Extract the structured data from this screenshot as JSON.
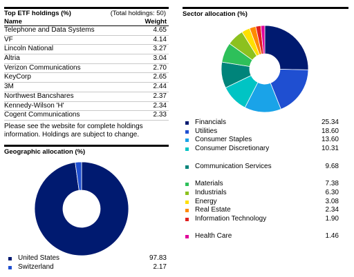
{
  "holdings": {
    "title": "Top ETF holdings (%)",
    "total_note": "(Total holdings: 50)",
    "col_name": "Name",
    "col_weight": "Weight",
    "rows": [
      {
        "name": "Telephone and Data Systems",
        "weight": "4.65"
      },
      {
        "name": "VF",
        "weight": "4.14"
      },
      {
        "name": "Lincoln National",
        "weight": "3.27"
      },
      {
        "name": "Altria",
        "weight": "3.04"
      },
      {
        "name": "Verizon Communications",
        "weight": "2.70"
      },
      {
        "name": "KeyCorp",
        "weight": "2.65"
      },
      {
        "name": "3M",
        "weight": "2.44"
      },
      {
        "name": "Northwest Bancshares",
        "weight": "2.37"
      },
      {
        "name": "Kennedy-Wilson 'H'",
        "weight": "2.34"
      },
      {
        "name": "Cogent Communications",
        "weight": "2.33"
      }
    ],
    "note": "Please see the website for complete holdings information. Holdings are subject to change."
  },
  "chart_data": [
    {
      "type": "pie",
      "title": "Sector allocation (%)",
      "categories": [
        "Financials",
        "Utilities",
        "Consumer Staples",
        "Consumer Discretionary",
        "Communication Services",
        "Materials",
        "Industrials",
        "Energy",
        "Real Estate",
        "Information Technology",
        "Health Care"
      ],
      "values": [
        25.34,
        18.6,
        13.6,
        10.31,
        9.68,
        7.38,
        6.3,
        3.08,
        2.34,
        1.9,
        1.46
      ],
      "value_labels": [
        "25.34",
        "18.60",
        "13.60",
        "10.31",
        "9.68",
        "7.38",
        "6.30",
        "3.08",
        "2.34",
        "1.90",
        "1.46"
      ],
      "colors": [
        "#001a70",
        "#1f4fd1",
        "#1aa3e8",
        "#00c4c4",
        "#00847a",
        "#2ec05a",
        "#8cc11f",
        "#ffe000",
        "#ff8a00",
        "#e02020",
        "#e0009a"
      ]
    },
    {
      "type": "pie",
      "title": "Geographic allocation (%)",
      "categories": [
        "United States",
        "Switzerland"
      ],
      "values": [
        97.83,
        2.17
      ],
      "value_labels": [
        "97.83",
        "2.17"
      ],
      "colors": [
        "#001a70",
        "#1f4fd1"
      ]
    }
  ]
}
